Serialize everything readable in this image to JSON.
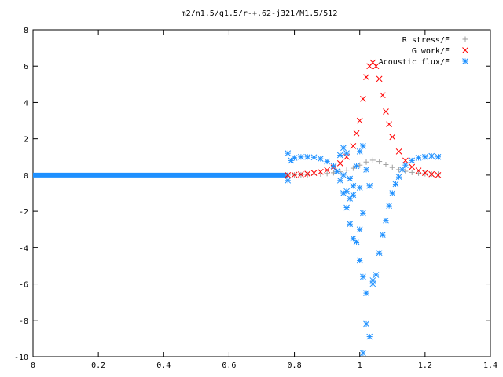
{
  "chart_data": {
    "type": "scatter",
    "title": "m2/n1.5/q1.5/r-+.62-j321/M1.5/512",
    "xlabel": "",
    "ylabel": "",
    "xlim": [
      0,
      1.4
    ],
    "ylim": [
      -10,
      8
    ],
    "grid": false,
    "legend_position": "top-right",
    "x_ticks": [
      "0",
      "0.2",
      "0.4",
      "0.6",
      "0.8",
      "1",
      "1.2",
      "1.4"
    ],
    "y_ticks": [
      "-10",
      "-8",
      "-6",
      "-4",
      "-2",
      "0",
      "2",
      "4",
      "6",
      "8"
    ],
    "series": [
      {
        "name": "R stress/E",
        "marker": "plus",
        "color": "#a0a0a0",
        "points": [
          [
            0.78,
            0.0
          ],
          [
            0.8,
            0.01
          ],
          [
            0.82,
            0.02
          ],
          [
            0.84,
            0.03
          ],
          [
            0.86,
            0.04
          ],
          [
            0.88,
            0.06
          ],
          [
            0.9,
            0.09
          ],
          [
            0.92,
            0.13
          ],
          [
            0.94,
            0.18
          ],
          [
            0.96,
            0.27
          ],
          [
            0.98,
            0.38
          ],
          [
            1.0,
            0.55
          ],
          [
            1.02,
            0.72
          ],
          [
            1.04,
            0.82
          ],
          [
            1.06,
            0.75
          ],
          [
            1.08,
            0.58
          ],
          [
            1.1,
            0.42
          ],
          [
            1.12,
            0.3
          ],
          [
            1.14,
            0.21
          ],
          [
            1.16,
            0.15
          ],
          [
            1.18,
            0.11
          ],
          [
            1.2,
            0.08
          ],
          [
            1.22,
            0.06
          ],
          [
            1.24,
            0.05
          ]
        ]
      },
      {
        "name": "G work/E",
        "marker": "cross",
        "color": "#ff0000",
        "points": [
          [
            0.78,
            0.0
          ],
          [
            0.8,
            0.02
          ],
          [
            0.82,
            0.04
          ],
          [
            0.84,
            0.07
          ],
          [
            0.86,
            0.12
          ],
          [
            0.88,
            0.18
          ],
          [
            0.9,
            0.28
          ],
          [
            0.92,
            0.42
          ],
          [
            0.94,
            0.65
          ],
          [
            0.96,
            1.0
          ],
          [
            0.98,
            1.6
          ],
          [
            0.99,
            2.3
          ],
          [
            1.0,
            3.0
          ],
          [
            1.01,
            4.2
          ],
          [
            1.02,
            5.4
          ],
          [
            1.03,
            6.0
          ],
          [
            1.04,
            6.2
          ],
          [
            1.05,
            6.0
          ],
          [
            1.06,
            5.3
          ],
          [
            1.07,
            4.4
          ],
          [
            1.08,
            3.5
          ],
          [
            1.09,
            2.8
          ],
          [
            1.1,
            2.1
          ],
          [
            1.12,
            1.3
          ],
          [
            1.14,
            0.8
          ],
          [
            1.16,
            0.45
          ],
          [
            1.18,
            0.25
          ],
          [
            1.2,
            0.12
          ],
          [
            1.22,
            0.05
          ],
          [
            1.24,
            0.0
          ]
        ]
      },
      {
        "name": "Acoustic flux/E",
        "marker": "star",
        "color": "#1e90ff",
        "points": [
          [
            0.78,
            1.2
          ],
          [
            0.78,
            -0.3
          ],
          [
            0.79,
            0.8
          ],
          [
            0.8,
            0.95
          ],
          [
            0.82,
            1.0
          ],
          [
            0.84,
            1.0
          ],
          [
            0.86,
            0.98
          ],
          [
            0.88,
            0.9
          ],
          [
            0.9,
            0.75
          ],
          [
            0.92,
            0.5
          ],
          [
            0.93,
            0.2
          ],
          [
            0.94,
            -0.3
          ],
          [
            0.95,
            -1.0
          ],
          [
            0.96,
            -1.8
          ],
          [
            0.97,
            -2.7
          ],
          [
            0.98,
            -3.5
          ],
          [
            0.99,
            -3.7
          ],
          [
            1.0,
            -3.0
          ],
          [
            1.0,
            -4.7
          ],
          [
            1.01,
            -5.6
          ],
          [
            1.02,
            -6.5
          ],
          [
            1.02,
            -8.2
          ],
          [
            1.03,
            -8.9
          ],
          [
            1.04,
            -6.0
          ],
          [
            1.05,
            -5.5
          ],
          [
            1.06,
            -4.3
          ],
          [
            1.07,
            -3.3
          ],
          [
            1.08,
            -2.5
          ],
          [
            1.09,
            -1.7
          ],
          [
            1.1,
            -1.0
          ],
          [
            1.11,
            -0.5
          ],
          [
            1.12,
            -0.1
          ],
          [
            1.13,
            0.3
          ],
          [
            1.14,
            0.55
          ],
          [
            1.16,
            0.8
          ],
          [
            1.18,
            0.95
          ],
          [
            1.2,
            1.0
          ],
          [
            1.22,
            1.05
          ],
          [
            1.24,
            1.0
          ],
          [
            0.95,
            0.0
          ],
          [
            0.96,
            -0.9
          ],
          [
            0.97,
            -1.3
          ],
          [
            0.98,
            -0.6
          ],
          [
            0.99,
            0.5
          ],
          [
            1.0,
            1.3
          ],
          [
            1.01,
            1.6
          ],
          [
            1.01,
            -9.8
          ],
          [
            1.02,
            0.3
          ],
          [
            1.03,
            -0.6
          ],
          [
            1.04,
            -5.8
          ],
          [
            0.94,
            1.1
          ],
          [
            0.95,
            1.5
          ],
          [
            0.96,
            1.2
          ],
          [
            0.97,
            -0.2
          ],
          [
            0.98,
            -1.1
          ],
          [
            1.0,
            -0.7
          ],
          [
            1.01,
            -2.1
          ]
        ]
      }
    ]
  }
}
